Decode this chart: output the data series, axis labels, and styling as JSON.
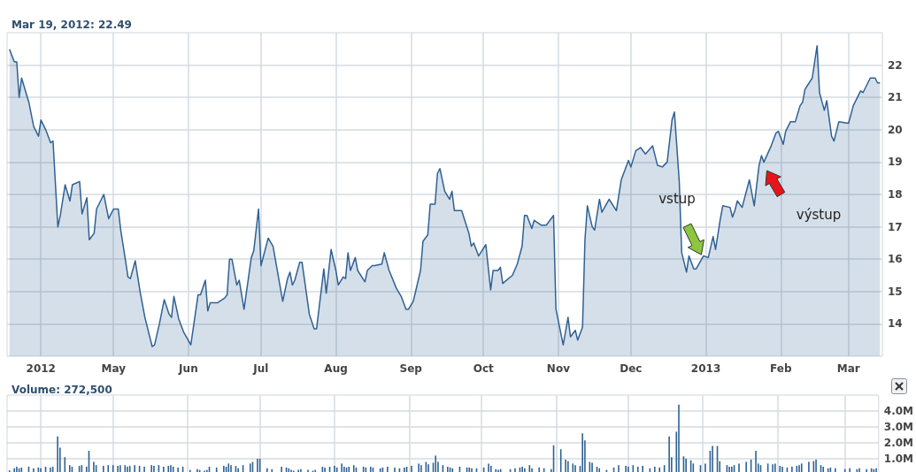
{
  "chart_data": [
    {
      "type": "area",
      "title": "Mar 19, 2012: 22.49",
      "color": "#2f6193",
      "x": [
        "2012-03-19",
        "2012-03-21",
        "2012-03-22",
        "2012-03-23",
        "2012-03-24",
        "2012-03-27",
        "2012-03-29",
        "2012-03-31",
        "2012-04-01",
        "2012-04-03",
        "2012-04-05",
        "2012-04-06",
        "2012-04-08",
        "2012-04-09",
        "2012-04-11",
        "2012-04-13",
        "2012-04-14",
        "2012-04-17",
        "2012-04-18",
        "2012-04-20",
        "2012-04-21",
        "2012-04-23",
        "2012-04-24",
        "2012-04-27",
        "2012-04-29",
        "2012-05-01",
        "2012-05-03",
        "2012-05-04",
        "2012-05-06",
        "2012-05-07",
        "2012-05-08",
        "2012-05-10",
        "2012-05-12",
        "2012-05-14",
        "2012-05-17",
        "2012-05-18",
        "2012-05-20",
        "2012-05-22",
        "2012-05-24",
        "2012-05-25",
        "2012-05-26",
        "2012-05-28",
        "2012-05-30",
        "2012-06-02",
        "2012-06-05",
        "2012-06-06",
        "2012-06-08",
        "2012-06-09",
        "2012-06-10",
        "2012-06-13",
        "2012-06-16",
        "2012-06-17",
        "2012-06-18",
        "2012-06-19",
        "2012-06-21",
        "2012-06-22",
        "2012-06-24",
        "2012-06-27",
        "2012-06-28",
        "2012-06-30",
        "2012-07-01",
        "2012-07-04",
        "2012-07-06",
        "2012-07-10",
        "2012-07-12",
        "2012-07-13",
        "2012-07-14",
        "2012-07-15",
        "2012-07-17",
        "2012-07-18",
        "2012-07-21",
        "2012-07-23",
        "2012-07-24",
        "2012-07-27",
        "2012-07-28",
        "2012-07-30",
        "2012-08-01",
        "2012-08-02",
        "2012-08-04",
        "2012-08-05",
        "2012-08-06",
        "2012-08-07",
        "2012-08-09",
        "2012-08-10",
        "2012-08-13",
        "2012-08-14",
        "2012-08-16",
        "2012-08-17",
        "2012-08-20",
        "2012-08-21",
        "2012-08-23",
        "2012-08-26",
        "2012-08-28",
        "2012-08-30",
        "2012-08-31",
        "2012-09-02",
        "2012-09-05",
        "2012-09-06",
        "2012-09-08",
        "2012-09-09",
        "2012-09-11",
        "2012-09-12",
        "2012-09-13",
        "2012-09-15",
        "2012-09-17",
        "2012-09-18",
        "2012-09-19",
        "2012-09-22",
        "2012-09-25",
        "2012-09-26",
        "2012-09-27",
        "2012-09-29",
        "2012-10-02",
        "2012-10-04",
        "2012-10-05",
        "2012-10-07",
        "2012-10-08",
        "2012-10-09",
        "2012-10-13",
        "2012-10-15",
        "2012-10-17",
        "2012-10-18",
        "2012-10-19",
        "2012-10-21",
        "2012-10-22",
        "2012-10-25",
        "2012-10-27",
        "2012-10-30",
        "2012-10-31",
        "2012-11-03",
        "2012-11-05",
        "2012-11-06",
        "2012-11-08",
        "2012-11-09",
        "2012-11-11",
        "2012-11-12",
        "2012-11-13",
        "2012-11-15",
        "2012-11-16",
        "2012-11-18",
        "2012-11-19",
        "2012-11-22",
        "2012-11-25",
        "2012-11-27",
        "2012-11-30",
        "2012-12-01",
        "2012-12-03",
        "2012-12-05",
        "2012-12-07",
        "2012-12-10",
        "2012-12-12",
        "2012-12-14",
        "2012-12-16",
        "2012-12-18",
        "2012-12-19",
        "2012-12-21",
        "2012-12-22",
        "2012-12-24",
        "2012-12-25",
        "2012-12-27",
        "2012-12-28",
        "2012-12-31",
        "2013-01-02",
        "2013-01-04",
        "2013-01-05",
        "2013-01-07",
        "2013-01-08",
        "2013-01-11",
        "2013-01-12",
        "2013-01-13",
        "2013-01-14",
        "2013-01-16",
        "2013-01-19",
        "2013-01-21",
        "2013-01-23",
        "2013-01-24",
        "2013-01-25",
        "2013-01-28",
        "2013-01-30",
        "2013-01-31",
        "2013-02-02",
        "2013-02-03",
        "2013-02-05",
        "2013-02-07",
        "2013-02-09",
        "2013-02-10",
        "2013-02-11",
        "2013-02-14",
        "2013-02-16",
        "2013-02-17",
        "2013-02-19",
        "2013-02-20",
        "2013-02-22",
        "2013-02-23",
        "2013-02-25",
        "2013-03-01",
        "2013-03-03",
        "2013-03-06",
        "2013-03-07",
        "2013-03-10",
        "2013-03-12",
        "2013-03-13",
        "2013-03-14"
      ],
      "values": [
        22.49,
        22.1,
        22.1,
        21.0,
        21.6,
        20.85,
        20.1,
        19.8,
        20.3,
        20.0,
        19.6,
        19.65,
        17.0,
        17.35,
        18.3,
        17.8,
        18.3,
        18.4,
        17.4,
        17.9,
        16.6,
        16.8,
        17.55,
        18.0,
        17.25,
        17.55,
        17.55,
        16.9,
        15.95,
        15.45,
        15.4,
        15.95,
        15.0,
        14.2,
        13.3,
        13.35,
        14.0,
        14.75,
        14.3,
        14.2,
        14.85,
        14.15,
        13.75,
        13.35,
        14.9,
        14.9,
        15.35,
        14.4,
        14.65,
        14.65,
        14.8,
        14.9,
        16.0,
        16.0,
        15.2,
        15.35,
        14.45,
        16.05,
        16.25,
        17.55,
        15.8,
        16.65,
        16.4,
        14.7,
        15.4,
        15.6,
        15.2,
        15.35,
        15.9,
        15.9,
        14.3,
        13.85,
        13.85,
        15.7,
        14.95,
        16.3,
        15.65,
        15.2,
        15.45,
        15.4,
        16.2,
        15.65,
        16.05,
        15.65,
        15.3,
        15.65,
        15.8,
        15.8,
        15.85,
        16.2,
        15.65,
        15.1,
        14.85,
        14.45,
        14.45,
        14.7,
        15.65,
        16.55,
        16.75,
        17.7,
        17.7,
        18.65,
        18.8,
        18.1,
        17.85,
        18.1,
        17.5,
        17.5,
        16.8,
        16.4,
        16.5,
        16.1,
        16.45,
        15.05,
        15.65,
        15.65,
        15.75,
        15.25,
        15.5,
        15.85,
        16.4,
        17.35,
        17.35,
        16.95,
        17.2,
        17.05,
        17.05,
        17.35,
        14.45,
        13.35,
        14.2,
        13.6,
        13.8,
        13.5,
        13.9,
        16.6,
        17.65,
        17.0,
        16.9,
        17.85,
        17.45,
        17.85,
        17.5,
        18.45,
        19.05,
        18.85,
        19.35,
        19.45,
        19.25,
        19.5,
        18.9,
        18.85,
        19.0,
        20.3,
        20.55,
        18.4,
        16.2,
        15.6,
        16.1,
        15.7,
        15.7,
        16.1,
        16.05,
        16.7,
        16.3,
        17.25,
        17.65,
        17.6,
        17.3,
        17.5,
        17.8,
        17.6,
        18.45,
        17.65,
        18.9,
        19.2,
        19.0,
        19.5,
        19.9,
        19.95,
        19.55,
        19.95,
        20.25,
        20.25,
        20.75,
        20.85,
        21.25,
        21.6,
        22.6,
        21.15,
        20.6,
        20.9,
        19.8,
        19.65,
        20.25,
        20.2,
        20.75,
        21.2,
        21.15,
        21.6,
        21.6,
        21.45,
        21.45
      ],
      "xlim": [
        "2012-03-18",
        "2013-03-15"
      ],
      "xticks": [
        {
          "value": "2012-04-01",
          "label": "2012"
        },
        {
          "value": "2012-05-01",
          "label": "May"
        },
        {
          "value": "2012-06-01",
          "label": "Jun"
        },
        {
          "value": "2012-07-01",
          "label": "Jul"
        },
        {
          "value": "2012-08-01",
          "label": "Aug"
        },
        {
          "value": "2012-09-01",
          "label": "Sep"
        },
        {
          "value": "2012-10-01",
          "label": "Oct"
        },
        {
          "value": "2012-11-01",
          "label": "Nov"
        },
        {
          "value": "2012-12-01",
          "label": "Dec"
        },
        {
          "value": "2013-01-01",
          "label": "2013"
        },
        {
          "value": "2013-02-01",
          "label": "Feb"
        },
        {
          "value": "2013-03-01",
          "label": "Mar"
        }
      ],
      "ylim": [
        13,
        23
      ],
      "yticks": [
        14,
        15,
        16,
        17,
        18,
        19,
        20,
        21,
        22
      ],
      "grid": true,
      "annotations": [
        "vstup",
        "výstup"
      ]
    },
    {
      "type": "bar",
      "title": "Volume: 272,500",
      "color": "#2f6193",
      "tick_labels": "y",
      "x": [
        "2012-03-19",
        "2012-03-21",
        "2012-03-22",
        "2012-03-23",
        "2012-03-24",
        "2012-03-27",
        "2012-03-29",
        "2012-03-31",
        "2012-04-01",
        "2012-04-03",
        "2012-04-05",
        "2012-04-06",
        "2012-04-08",
        "2012-04-09",
        "2012-04-11",
        "2012-04-13",
        "2012-04-14",
        "2012-04-17",
        "2012-04-18",
        "2012-04-20",
        "2012-04-21",
        "2012-04-23",
        "2012-04-24",
        "2012-04-27",
        "2012-04-29",
        "2012-05-01",
        "2012-05-03",
        "2012-05-04",
        "2012-05-06",
        "2012-05-07",
        "2012-05-08",
        "2012-05-10",
        "2012-05-12",
        "2012-05-14",
        "2012-05-17",
        "2012-05-18",
        "2012-05-20",
        "2012-05-22",
        "2012-05-24",
        "2012-05-25",
        "2012-05-26",
        "2012-05-28",
        "2012-05-30",
        "2012-06-02",
        "2012-06-05",
        "2012-06-06",
        "2012-06-08",
        "2012-06-09",
        "2012-06-10",
        "2012-06-13",
        "2012-06-16",
        "2012-06-17",
        "2012-06-18",
        "2012-06-19",
        "2012-06-21",
        "2012-06-22",
        "2012-06-24",
        "2012-06-27",
        "2012-06-28",
        "2012-06-30",
        "2012-07-01",
        "2012-07-04",
        "2012-07-06",
        "2012-07-10",
        "2012-07-12",
        "2012-07-13",
        "2012-07-14",
        "2012-07-15",
        "2012-07-17",
        "2012-07-18",
        "2012-07-21",
        "2012-07-23",
        "2012-07-24",
        "2012-07-27",
        "2012-07-28",
        "2012-07-30",
        "2012-08-01",
        "2012-08-02",
        "2012-08-04",
        "2012-08-05",
        "2012-08-06",
        "2012-08-07",
        "2012-08-09",
        "2012-08-10",
        "2012-08-13",
        "2012-08-14",
        "2012-08-16",
        "2012-08-17",
        "2012-08-20",
        "2012-08-21",
        "2012-08-23",
        "2012-08-26",
        "2012-08-28",
        "2012-08-30",
        "2012-08-31",
        "2012-09-02",
        "2012-09-05",
        "2012-09-06",
        "2012-09-08",
        "2012-09-09",
        "2012-09-11",
        "2012-09-12",
        "2012-09-13",
        "2012-09-15",
        "2012-09-17",
        "2012-09-18",
        "2012-09-19",
        "2012-09-22",
        "2012-09-25",
        "2012-09-26",
        "2012-09-27",
        "2012-09-29",
        "2012-10-02",
        "2012-10-04",
        "2012-10-05",
        "2012-10-07",
        "2012-10-08",
        "2012-10-09",
        "2012-10-13",
        "2012-10-15",
        "2012-10-17",
        "2012-10-18",
        "2012-10-19",
        "2012-10-21",
        "2012-10-22",
        "2012-10-25",
        "2012-10-27",
        "2012-10-30",
        "2012-10-31",
        "2012-11-03",
        "2012-11-05",
        "2012-11-06",
        "2012-11-08",
        "2012-11-09",
        "2012-11-11",
        "2012-11-12",
        "2012-11-13",
        "2012-11-15",
        "2012-11-16",
        "2012-11-18",
        "2012-11-19",
        "2012-11-22",
        "2012-11-25",
        "2012-11-27",
        "2012-11-30",
        "2012-12-01",
        "2012-12-03",
        "2012-12-05",
        "2012-12-07",
        "2012-12-10",
        "2012-12-12",
        "2012-12-14",
        "2012-12-16",
        "2012-12-18",
        "2012-12-19",
        "2012-12-21",
        "2012-12-22",
        "2012-12-24",
        "2012-12-25",
        "2012-12-27",
        "2012-12-28",
        "2012-12-31",
        "2013-01-02",
        "2013-01-04",
        "2013-01-05",
        "2013-01-07",
        "2013-01-08",
        "2013-01-11",
        "2013-01-12",
        "2013-01-13",
        "2013-01-14",
        "2013-01-16",
        "2013-01-19",
        "2013-01-21",
        "2013-01-23",
        "2013-01-24",
        "2013-01-25",
        "2013-01-28",
        "2013-01-30",
        "2013-01-31",
        "2013-02-02",
        "2013-02-03",
        "2013-02-05",
        "2013-02-07",
        "2013-02-09",
        "2013-02-10",
        "2013-02-11",
        "2013-02-14",
        "2013-02-16",
        "2013-02-17",
        "2013-02-19",
        "2013-02-20",
        "2013-02-22",
        "2013-02-23",
        "2013-02-25",
        "2013-03-01",
        "2013-03-03",
        "2013-03-06",
        "2013-03-07",
        "2013-03-10",
        "2013-03-12",
        "2013-03-13",
        "2013-03-14"
      ],
      "values": [
        0.27,
        0.4,
        0.5,
        0.4,
        0.45,
        0.5,
        0.4,
        0.45,
        0.4,
        0.5,
        0.45,
        0.5,
        2.4,
        1.7,
        1.1,
        0.6,
        0.5,
        0.55,
        0.6,
        0.5,
        1.5,
        0.8,
        0.6,
        0.55,
        0.6,
        0.6,
        0.55,
        0.6,
        0.6,
        0.5,
        0.55,
        0.6,
        0.55,
        0.5,
        0.6,
        0.55,
        0.6,
        0.5,
        0.55,
        0.6,
        0.5,
        0.45,
        0.5,
        0.3,
        0.35,
        0.3,
        0.25,
        0.3,
        0.5,
        0.45,
        0.55,
        0.5,
        0.7,
        0.6,
        0.55,
        0.4,
        0.6,
        0.7,
        0.8,
        1.0,
        1.0,
        0.4,
        0.35,
        0.5,
        0.45,
        0.4,
        0.3,
        0.25,
        0.3,
        0.35,
        0.3,
        0.25,
        0.3,
        0.5,
        0.45,
        0.5,
        0.55,
        0.45,
        0.7,
        0.5,
        0.45,
        0.5,
        0.6,
        0.45,
        0.5,
        0.45,
        0.5,
        0.45,
        0.4,
        0.45,
        0.5,
        0.45,
        0.4,
        0.45,
        0.5,
        0.55,
        0.7,
        0.6,
        0.8,
        0.65,
        0.75,
        1.2,
        0.8,
        0.6,
        0.5,
        0.45,
        0.4,
        0.5,
        0.45,
        0.45,
        0.4,
        0.4,
        0.45,
        0.7,
        0.55,
        0.35,
        0.3,
        0.35,
        0.35,
        0.4,
        0.45,
        0.5,
        0.4,
        0.6,
        0.4,
        0.45,
        0.4,
        0.35,
        1.85,
        1.6,
        0.95,
        0.85,
        0.7,
        0.6,
        0.55,
        2.6,
        2.15,
        0.8,
        0.75,
        0.5,
        0.4,
        0.3,
        0.45,
        0.6,
        0.55,
        0.5,
        0.6,
        0.5,
        0.55,
        0.4,
        0.5,
        0.45,
        0.6,
        2.4,
        1.1,
        2.7,
        4.4,
        1.15,
        1.0,
        0.9,
        0.7,
        0.6,
        0.7,
        1.5,
        1.8,
        1.8,
        0.85,
        0.6,
        0.5,
        0.5,
        0.6,
        0.7,
        0.8,
        0.95,
        1.5,
        0.7,
        0.6,
        0.7,
        0.65,
        0.7,
        0.55,
        0.5,
        0.45,
        0.5,
        0.55,
        0.6,
        0.7,
        0.8,
        0.85,
        0.95,
        0.6,
        0.5,
        0.4,
        0.45,
        0.4,
        0.35,
        0.4,
        0.35,
        0.4,
        0.35,
        0.4,
        0.35,
        0.4
      ],
      "xlim": [
        "2012-03-18",
        "2013-03-15"
      ],
      "xticks": [
        {
          "value": "2012-04-01",
          "label": null
        },
        {
          "value": "2012-05-01",
          "label": null
        },
        {
          "value": "2012-06-01",
          "label": null
        },
        {
          "value": "2012-07-01",
          "label": null
        },
        {
          "value": "2012-08-01",
          "label": null
        },
        {
          "value": "2012-09-01",
          "label": null
        },
        {
          "value": "2012-10-01",
          "label": null
        },
        {
          "value": "2012-11-01",
          "label": null
        },
        {
          "value": "2012-12-01",
          "label": null
        },
        {
          "value": "2013-01-01",
          "label": null
        },
        {
          "value": "2013-02-01",
          "label": null
        },
        {
          "value": "2013-03-01",
          "label": null
        }
      ],
      "ylim": [
        0,
        5
      ],
      "yticks": [
        {
          "value": 1,
          "label": "1.0M"
        },
        {
          "value": 2,
          "label": "2.0M"
        },
        {
          "value": 3,
          "label": "3.0M"
        },
        {
          "value": 4,
          "label": "4.0M"
        }
      ],
      "grid": true
    }
  ]
}
